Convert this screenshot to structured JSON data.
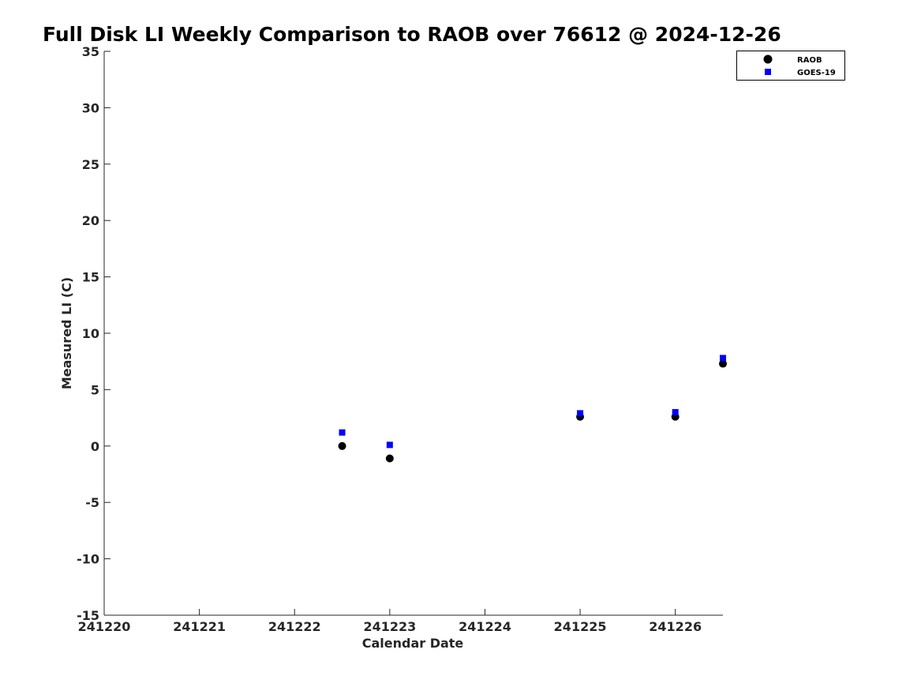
{
  "chart_data": {
    "type": "scatter",
    "title": "Full Disk LI Weekly Comparison to RAOB over 76612 @ 2024-12-26",
    "xlabel": "Calendar Date",
    "ylabel": "Measured LI (C)",
    "xlim": [
      0,
      6.5
    ],
    "ylim": [
      -15,
      35
    ],
    "x_ticks": [
      0,
      1,
      2,
      3,
      4,
      5,
      6
    ],
    "x_tick_labels": [
      "241220",
      "241221",
      "241222",
      "241223",
      "241224",
      "241225",
      "241226"
    ],
    "y_ticks": [
      -15,
      -10,
      -5,
      0,
      5,
      10,
      15,
      20,
      25,
      30,
      35
    ],
    "y_tick_labels": [
      "-15",
      "-10",
      "-5",
      "0",
      "5",
      "10",
      "15",
      "20",
      "25",
      "30",
      "35"
    ],
    "grid": false,
    "legend_position": "top-right",
    "series": [
      {
        "name": "RAOB",
        "marker": "circle",
        "color": "#000000",
        "x": [
          2.5,
          3.0,
          5.0,
          6.0,
          6.5
        ],
        "y": [
          0.0,
          -1.1,
          2.6,
          2.6,
          7.3
        ]
      },
      {
        "name": "GOES-19",
        "marker": "square",
        "color": "#0000ff",
        "x": [
          2.5,
          3.0,
          5.0,
          6.0,
          6.5
        ],
        "y": [
          1.2,
          0.1,
          2.9,
          3.0,
          7.8
        ]
      }
    ]
  }
}
